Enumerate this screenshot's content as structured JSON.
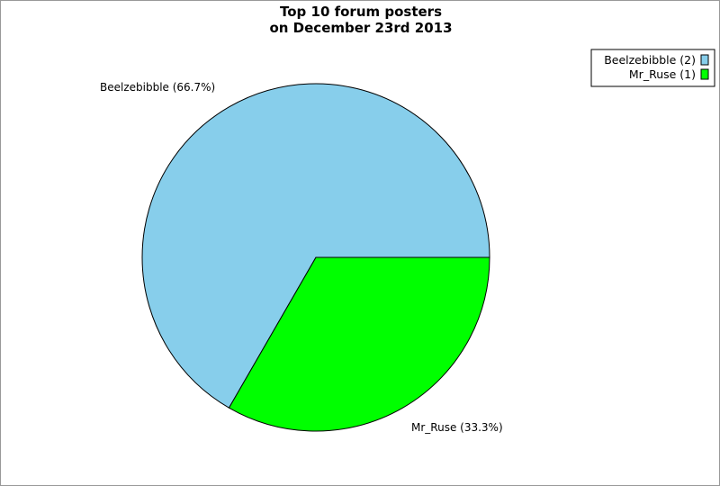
{
  "chart_data": {
    "type": "pie",
    "title": [
      "Top 10 forum posters",
      "on December 23rd 2013"
    ],
    "slices": [
      {
        "name": "Beelzebibble",
        "value": 2,
        "percent_label": "Beelzebibble (66.7%)",
        "legend_label": "Beelzebibble (2)",
        "color": "#87ceeb"
      },
      {
        "name": "Mr_Ruse",
        "value": 1,
        "percent_label": "Mr_Ruse (33.3%)",
        "legend_label": "Mr_Ruse (1)",
        "color": "#00ff00"
      }
    ],
    "legend_placement": "top-right"
  }
}
